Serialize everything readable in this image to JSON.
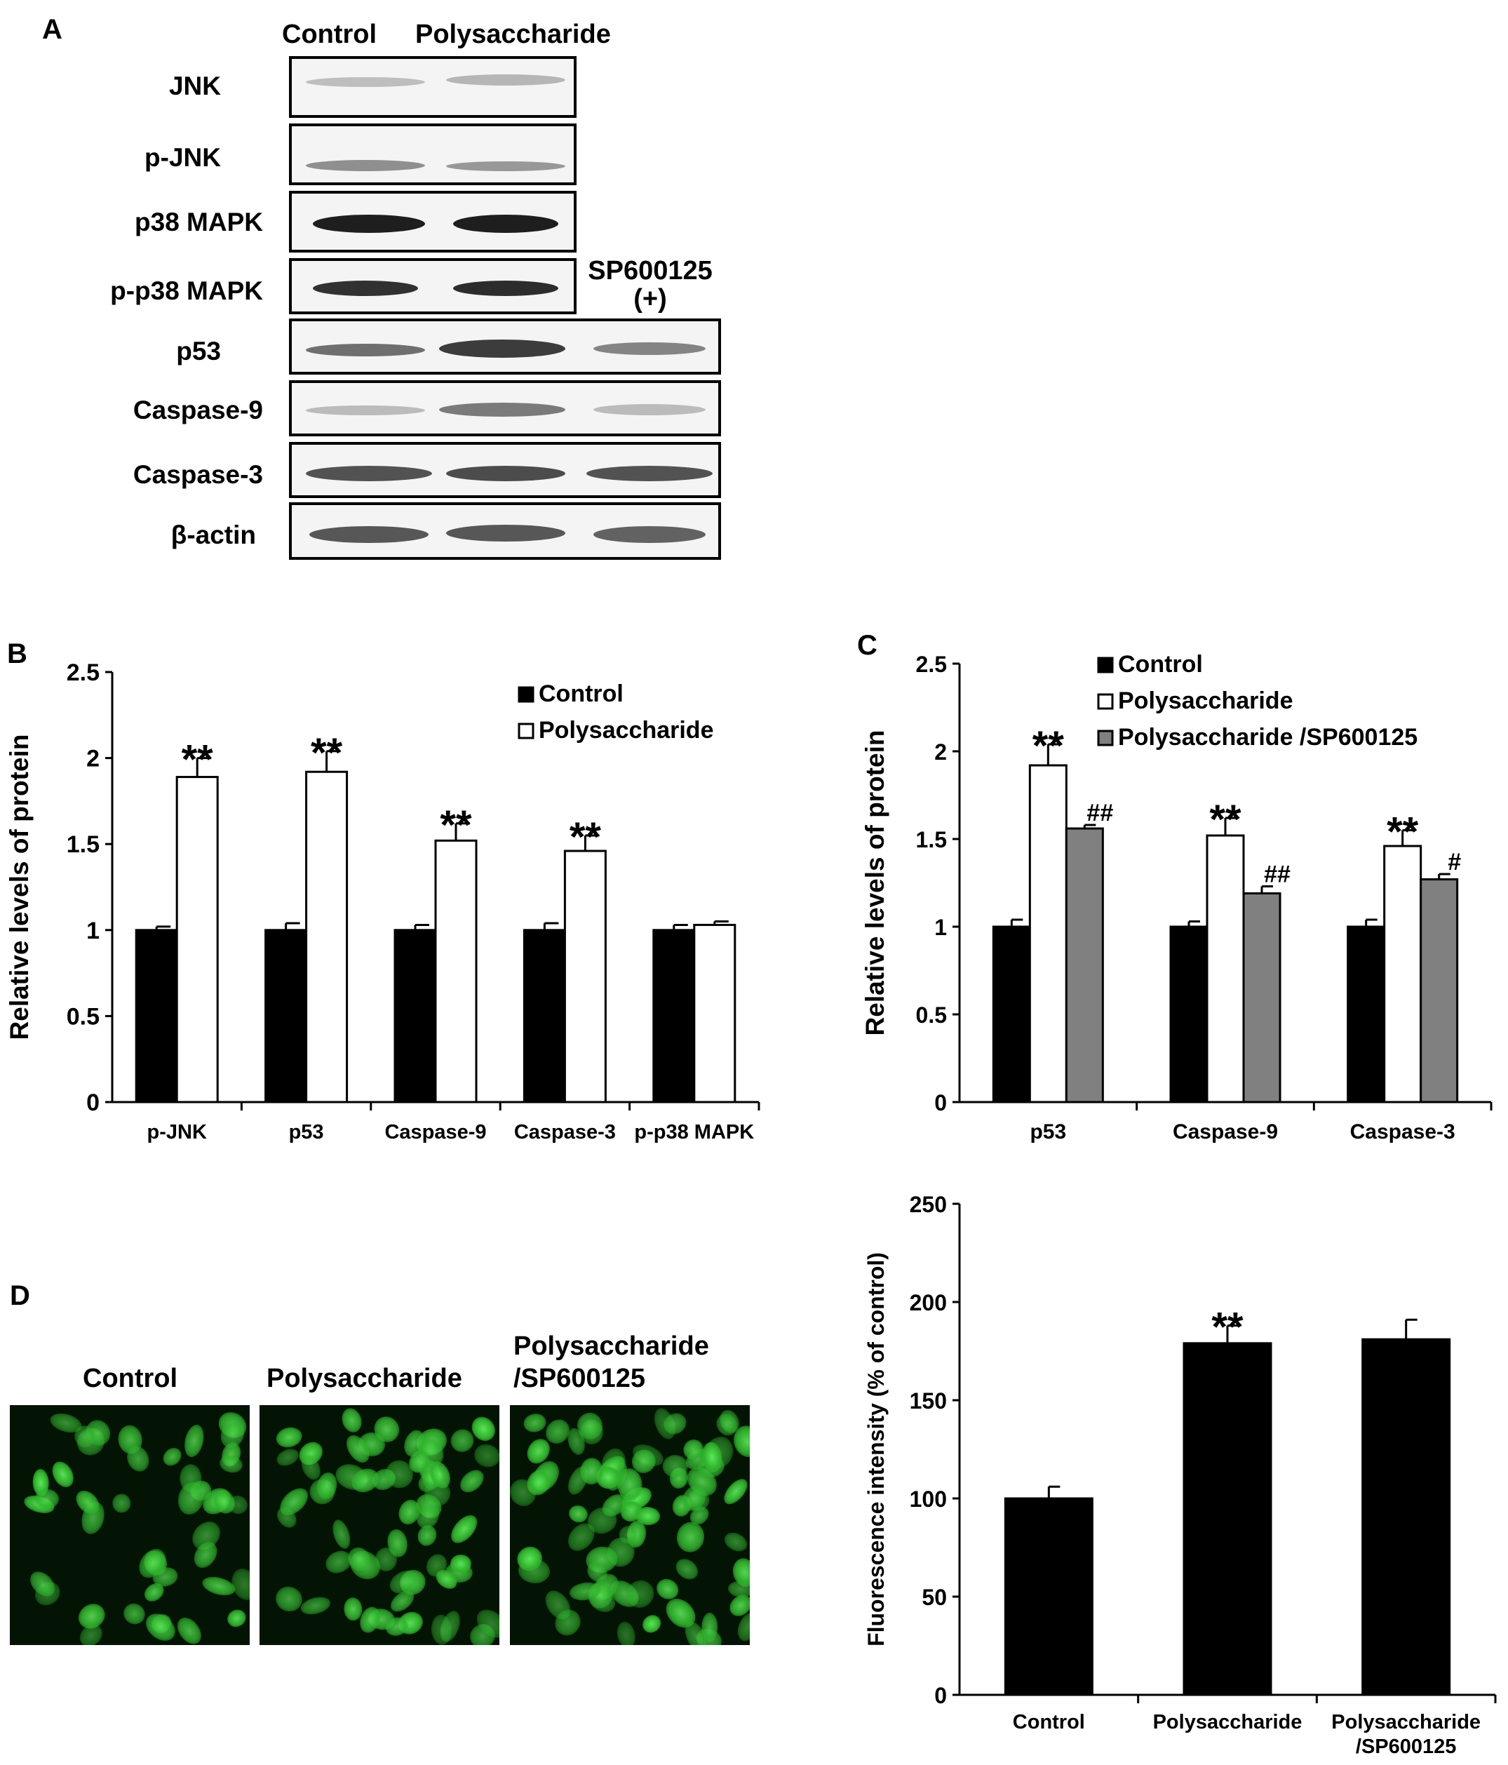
{
  "panel_a": {
    "letter": "A",
    "lane_headers": [
      "Control",
      "Polysaccharide"
    ],
    "inhibitor_label_line1": "SP600125",
    "inhibitor_label_line2": "(+)",
    "blots": [
      {
        "label": "JNK"
      },
      {
        "label": "p-JNK"
      },
      {
        "label": "p38 MAPK"
      },
      {
        "label": "p-p38 MAPK"
      },
      {
        "label": "p53"
      },
      {
        "label": "Caspase-9"
      },
      {
        "label": "Caspase-3"
      },
      {
        "label": "β-actin"
      }
    ]
  },
  "panel_d": {
    "letter": "D",
    "image_titles": [
      "Control",
      "Polysaccharide",
      "Polysaccharide\n/SP600125"
    ]
  },
  "chart_data": [
    {
      "panel": "B",
      "type": "bar",
      "ylabel": "Relative levels of protein",
      "ylim": [
        0,
        2.5
      ],
      "yticks": [
        "0",
        "0.5",
        "1",
        "1.5",
        "2",
        "2.5"
      ],
      "categories": [
        "p-JNK",
        "p53",
        "Caspase-9",
        "Caspase-3",
        "p-p38 MAPK"
      ],
      "series": [
        {
          "name": "Control",
          "color": "#000000",
          "values": [
            1.0,
            1.0,
            1.0,
            1.0,
            1.0
          ],
          "errors": [
            0.02,
            0.04,
            0.03,
            0.04,
            0.03
          ]
        },
        {
          "name": "Polysaccharide",
          "color": "#ffffff",
          "values": [
            1.89,
            1.92,
            1.52,
            1.46,
            1.03
          ],
          "errors": [
            0.11,
            0.12,
            0.1,
            0.09,
            0.02
          ]
        }
      ],
      "annotations": [
        {
          "category": 0,
          "series": 1,
          "text": "**"
        },
        {
          "category": 1,
          "series": 1,
          "text": "**"
        },
        {
          "category": 2,
          "series": 1,
          "text": "**"
        },
        {
          "category": 3,
          "series": 1,
          "text": "**"
        }
      ],
      "legend_position": "top-right"
    },
    {
      "panel": "C",
      "type": "bar",
      "ylabel": "Relative levels of protein",
      "ylim": [
        0,
        2.5
      ],
      "yticks": [
        "0",
        "0.5",
        "1",
        "1.5",
        "2",
        "2.5"
      ],
      "categories": [
        "p53",
        "Caspase-9",
        "Caspase-3"
      ],
      "series": [
        {
          "name": "Control",
          "color": "#000000",
          "values": [
            1.0,
            1.0,
            1.0
          ],
          "errors": [
            0.04,
            0.03,
            0.04
          ]
        },
        {
          "name": "Polysaccharide",
          "color": "#ffffff",
          "values": [
            1.92,
            1.52,
            1.46
          ],
          "errors": [
            0.12,
            0.1,
            0.09
          ]
        },
        {
          "name": "Polysaccharide /SP600125",
          "color": "#808080",
          "values": [
            1.56,
            1.19,
            1.27
          ],
          "errors": [
            0.02,
            0.04,
            0.03
          ]
        }
      ],
      "annotations": [
        {
          "category": 0,
          "series": 1,
          "text": "**"
        },
        {
          "category": 1,
          "series": 1,
          "text": "**"
        },
        {
          "category": 2,
          "series": 1,
          "text": "**"
        },
        {
          "category": 0,
          "series": 2,
          "text": "##"
        },
        {
          "category": 1,
          "series": 2,
          "text": "##"
        },
        {
          "category": 2,
          "series": 2,
          "text": "#"
        }
      ],
      "legend_position": "top-right"
    },
    {
      "panel": "D",
      "type": "bar",
      "ylabel": "Fluorescence intensity (% of control)",
      "ylim": [
        0,
        250
      ],
      "yticks": [
        "0",
        "50",
        "100",
        "150",
        "200",
        "250"
      ],
      "categories": [
        "Control",
        "Polysaccharide",
        "Polysaccharide\n/SP600125"
      ],
      "series": [
        {
          "name": "",
          "color": "#000000",
          "values": [
            100,
            179,
            181
          ],
          "errors": [
            6,
            9,
            10
          ]
        }
      ],
      "annotations": [
        {
          "category": 1,
          "series": 0,
          "text": "**"
        }
      ]
    }
  ]
}
